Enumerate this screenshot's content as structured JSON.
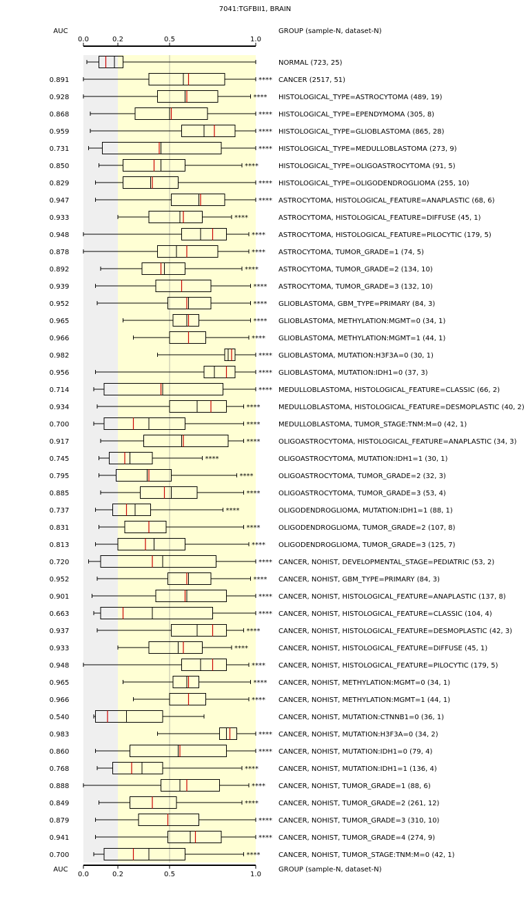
{
  "chart_data": {
    "type": "boxplot",
    "title": "7041:TGFBII1, BRAIN",
    "auc_label": "AUC",
    "group_label": "GROUP (sample-N, dataset-N)",
    "xlim": [
      0,
      1
    ],
    "ticks": [
      "0.0",
      "0.2",
      "0.5",
      "1.0"
    ],
    "tick_values": [
      0.0,
      0.2,
      0.5,
      1.0
    ],
    "shaded_regions": [
      {
        "from": 0.0,
        "to": 0.2,
        "color": "#efefef"
      },
      {
        "from": 0.2,
        "to": 1.0,
        "color": "#ffffd4"
      }
    ],
    "colors": {
      "significant": "#cc0000",
      "normal": "#000000",
      "median": "#cc0000"
    },
    "rows": [
      {
        "auc": "",
        "label": "NORMAL (723, 25)",
        "sig": "",
        "color": "black",
        "wl": 0.02,
        "q1": 0.09,
        "med": 0.18,
        "q3": 0.23,
        "wh": 1.0,
        "mean": 0.13
      },
      {
        "auc": "0.891",
        "label": "CANCER (2517, 51)",
        "sig": "****",
        "color": "red",
        "wl": 0.0,
        "q1": 0.38,
        "med": 0.58,
        "q3": 0.82,
        "wh": 1.0,
        "mean": 0.61
      },
      {
        "auc": "0.928",
        "label": "HISTOLOGICAL_TYPE=ASTROCYTOMA (489, 19)",
        "sig": "****",
        "color": "red",
        "wl": 0.0,
        "q1": 0.43,
        "med": 0.59,
        "q3": 0.78,
        "wh": 0.97,
        "mean": 0.6
      },
      {
        "auc": "0.868",
        "label": "HISTOLOGICAL_TYPE=EPENDYMOMA (305, 8)",
        "sig": "****",
        "color": "red",
        "wl": 0.04,
        "q1": 0.3,
        "med": 0.5,
        "q3": 0.72,
        "wh": 1.0,
        "mean": 0.51
      },
      {
        "auc": "0.959",
        "label": "HISTOLOGICAL_TYPE=GLIOBLASTOMA (865, 28)",
        "sig": "****",
        "color": "red",
        "wl": 0.04,
        "q1": 0.57,
        "med": 0.7,
        "q3": 0.88,
        "wh": 1.0,
        "mean": 0.76
      },
      {
        "auc": "0.731",
        "label": "HISTOLOGICAL_TYPE=MEDULLOBLASTOMA (273, 9)",
        "sig": "****",
        "color": "red",
        "wl": 0.03,
        "q1": 0.11,
        "med": 0.45,
        "q3": 0.8,
        "wh": 1.0,
        "mean": 0.44
      },
      {
        "auc": "0.850",
        "label": "HISTOLOGICAL_TYPE=OLIGOASTROCYTOMA (91, 5)",
        "sig": "****",
        "color": "red",
        "wl": 0.09,
        "q1": 0.23,
        "med": 0.45,
        "q3": 0.59,
        "wh": 0.92,
        "mean": 0.41
      },
      {
        "auc": "0.829",
        "label": "HISTOLOGICAL_TYPE=OLIGODENDROGLIOMA (255, 10)",
        "sig": "****",
        "color": "red",
        "wl": 0.07,
        "q1": 0.23,
        "med": 0.39,
        "q3": 0.55,
        "wh": 1.0,
        "mean": 0.4
      },
      {
        "auc": "0.947",
        "label": "ASTROCYTOMA, HISTOLOGICAL_FEATURE=ANAPLASTIC (68, 6)",
        "sig": "****",
        "color": "red",
        "wl": 0.07,
        "q1": 0.51,
        "med": 0.67,
        "q3": 0.82,
        "wh": 1.0,
        "mean": 0.68
      },
      {
        "auc": "0.933",
        "label": "ASTROCYTOMA, HISTOLOGICAL_FEATURE=DIFFUSE (45, 1)",
        "sig": "****",
        "color": "red",
        "wl": 0.2,
        "q1": 0.38,
        "med": 0.56,
        "q3": 0.69,
        "wh": 0.86,
        "mean": 0.58
      },
      {
        "auc": "0.948",
        "label": "ASTROCYTOMA, HISTOLOGICAL_FEATURE=PILOCYTIC (179, 5)",
        "sig": "****",
        "color": "red",
        "wl": 0.0,
        "q1": 0.57,
        "med": 0.68,
        "q3": 0.83,
        "wh": 0.96,
        "mean": 0.75
      },
      {
        "auc": "0.878",
        "label": "ASTROCYTOMA, TUMOR_GRADE=1 (74, 5)",
        "sig": "****",
        "color": "red",
        "wl": 0.0,
        "q1": 0.43,
        "med": 0.54,
        "q3": 0.78,
        "wh": 0.96,
        "mean": 0.6
      },
      {
        "auc": "0.892",
        "label": "ASTROCYTOMA, TUMOR_GRADE=2 (134, 10)",
        "sig": "****",
        "color": "red",
        "wl": 0.1,
        "q1": 0.34,
        "med": 0.47,
        "q3": 0.59,
        "wh": 0.92,
        "mean": 0.45
      },
      {
        "auc": "0.939",
        "label": "ASTROCYTOMA, TUMOR_GRADE=3 (132, 10)",
        "sig": "****",
        "color": "red",
        "wl": 0.07,
        "q1": 0.42,
        "med": 0.57,
        "q3": 0.74,
        "wh": 0.97,
        "mean": 0.57
      },
      {
        "auc": "0.952",
        "label": "GLIOBLASTOMA, GBM_TYPE=PRIMARY (84, 3)",
        "sig": "****",
        "color": "red",
        "wl": 0.08,
        "q1": 0.49,
        "med": 0.61,
        "q3": 0.74,
        "wh": 0.97,
        "mean": 0.6
      },
      {
        "auc": "0.965",
        "label": "GLIOBLASTOMA, METHYLATION:MGMT=0 (34, 1)",
        "sig": "****",
        "color": "red",
        "wl": 0.23,
        "q1": 0.52,
        "med": 0.6,
        "q3": 0.67,
        "wh": 0.97,
        "mean": 0.61
      },
      {
        "auc": "0.966",
        "label": "GLIOBLASTOMA, METHYLATION:MGMT=1 (44, 1)",
        "sig": "****",
        "color": "red",
        "wl": 0.29,
        "q1": 0.5,
        "med": 0.61,
        "q3": 0.71,
        "wh": 0.96,
        "mean": 0.61
      },
      {
        "auc": "0.982",
        "label": "GLIOBLASTOMA, MUTATION:H3F3A=0 (30, 1)",
        "sig": "****",
        "color": "red",
        "wl": 0.43,
        "q1": 0.82,
        "med": 0.84,
        "q3": 0.88,
        "wh": 1.0,
        "mean": 0.86
      },
      {
        "auc": "0.956",
        "label": "GLIOBLASTOMA, MUTATION:IDH1=0 (37, 3)",
        "sig": "****",
        "color": "red",
        "wl": 0.07,
        "q1": 0.7,
        "med": 0.76,
        "q3": 0.88,
        "wh": 1.0,
        "mean": 0.83
      },
      {
        "auc": "0.714",
        "label": "MEDULLOBLASTOMA, HISTOLOGICAL_FEATURE=CLASSIC (66, 2)",
        "sig": "****",
        "color": "red",
        "wl": 0.06,
        "q1": 0.12,
        "med": 0.46,
        "q3": 0.81,
        "wh": 1.0,
        "mean": 0.45
      },
      {
        "auc": "0.934",
        "label": "MEDULLOBLASTOMA, HISTOLOGICAL_FEATURE=DESMOPLASTIC (40, 2)",
        "sig": "****",
        "color": "red",
        "wl": 0.08,
        "q1": 0.5,
        "med": 0.66,
        "q3": 0.83,
        "wh": 0.93,
        "mean": 0.74
      },
      {
        "auc": "0.700",
        "label": "MEDULLOBLASTOMA, TUMOR_STAGE:TNM:M=0 (42, 1)",
        "sig": "****",
        "color": "red",
        "wl": 0.06,
        "q1": 0.12,
        "med": 0.38,
        "q3": 0.59,
        "wh": 0.93,
        "mean": 0.29
      },
      {
        "auc": "0.917",
        "label": "OLIGOASTROCYTOMA, HISTOLOGICAL_FEATURE=ANAPLASTIC (34, 3)",
        "sig": "****",
        "color": "red",
        "wl": 0.1,
        "q1": 0.35,
        "med": 0.57,
        "q3": 0.84,
        "wh": 0.93,
        "mean": 0.58
      },
      {
        "auc": "0.745",
        "label": "OLIGOASTROCYTOMA, MUTATION:IDH1=1 (30, 1)",
        "sig": "****",
        "color": "red",
        "wl": 0.09,
        "q1": 0.15,
        "med": 0.27,
        "q3": 0.4,
        "wh": 0.69,
        "mean": 0.24
      },
      {
        "auc": "0.795",
        "label": "OLIGOASTROCYTOMA, TUMOR_GRADE=2 (32, 3)",
        "sig": "****",
        "color": "red",
        "wl": 0.09,
        "q1": 0.19,
        "med": 0.37,
        "q3": 0.51,
        "wh": 0.89,
        "mean": 0.38
      },
      {
        "auc": "0.885",
        "label": "OLIGOASTROCYTOMA, TUMOR_GRADE=3 (53, 4)",
        "sig": "****",
        "color": "red",
        "wl": 0.1,
        "q1": 0.33,
        "med": 0.51,
        "q3": 0.66,
        "wh": 0.93,
        "mean": 0.47
      },
      {
        "auc": "0.737",
        "label": "OLIGODENDROGLIOMA, MUTATION:IDH1=1 (88, 1)",
        "sig": "****",
        "color": "red",
        "wl": 0.07,
        "q1": 0.17,
        "med": 0.3,
        "q3": 0.39,
        "wh": 0.81,
        "mean": 0.25
      },
      {
        "auc": "0.831",
        "label": "OLIGODENDROGLIOMA, TUMOR_GRADE=2 (107, 8)",
        "sig": "****",
        "color": "red",
        "wl": 0.09,
        "q1": 0.24,
        "med": 0.38,
        "q3": 0.48,
        "wh": 0.93,
        "mean": 0.38
      },
      {
        "auc": "0.813",
        "label": "OLIGODENDROGLIOMA, TUMOR_GRADE=3 (125, 7)",
        "sig": "****",
        "color": "red",
        "wl": 0.07,
        "q1": 0.2,
        "med": 0.41,
        "q3": 0.59,
        "wh": 0.96,
        "mean": 0.36
      },
      {
        "auc": "0.720",
        "label": "CANCER, NOHIST, DEVELOPMENTAL_STAGE=PEDIATRIC (53, 2)",
        "sig": "****",
        "color": "red",
        "wl": 0.03,
        "q1": 0.1,
        "med": 0.46,
        "q3": 0.77,
        "wh": 1.0,
        "mean": 0.4
      },
      {
        "auc": "0.952",
        "label": "CANCER, NOHIST, GBM_TYPE=PRIMARY (84, 3)",
        "sig": "****",
        "color": "red",
        "wl": 0.08,
        "q1": 0.49,
        "med": 0.61,
        "q3": 0.74,
        "wh": 0.97,
        "mean": 0.6
      },
      {
        "auc": "0.901",
        "label": "CANCER, NOHIST, HISTOLOGICAL_FEATURE=ANAPLASTIC (137, 8)",
        "sig": "****",
        "color": "red",
        "wl": 0.05,
        "q1": 0.42,
        "med": 0.6,
        "q3": 0.83,
        "wh": 1.0,
        "mean": 0.59
      },
      {
        "auc": "0.663",
        "label": "CANCER, NOHIST, HISTOLOGICAL_FEATURE=CLASSIC (104, 4)",
        "sig": "****",
        "color": "red",
        "wl": 0.06,
        "q1": 0.1,
        "med": 0.4,
        "q3": 0.75,
        "wh": 1.0,
        "mean": 0.23
      },
      {
        "auc": "0.937",
        "label": "CANCER, NOHIST, HISTOLOGICAL_FEATURE=DESMOPLASTIC (42, 3)",
        "sig": "****",
        "color": "red",
        "wl": 0.08,
        "q1": 0.51,
        "med": 0.66,
        "q3": 0.83,
        "wh": 0.93,
        "mean": 0.75
      },
      {
        "auc": "0.933",
        "label": "CANCER, NOHIST, HISTOLOGICAL_FEATURE=DIFFUSE (45, 1)",
        "sig": "****",
        "color": "red",
        "wl": 0.2,
        "q1": 0.38,
        "med": 0.55,
        "q3": 0.69,
        "wh": 0.86,
        "mean": 0.58
      },
      {
        "auc": "0.948",
        "label": "CANCER, NOHIST, HISTOLOGICAL_FEATURE=PILOCYTIC (179, 5)",
        "sig": "****",
        "color": "red",
        "wl": 0.0,
        "q1": 0.57,
        "med": 0.68,
        "q3": 0.83,
        "wh": 0.96,
        "mean": 0.75
      },
      {
        "auc": "0.965",
        "label": "CANCER, NOHIST, METHYLATION:MGMT=0 (34, 1)",
        "sig": "****",
        "color": "red",
        "wl": 0.23,
        "q1": 0.52,
        "med": 0.6,
        "q3": 0.67,
        "wh": 0.97,
        "mean": 0.61
      },
      {
        "auc": "0.966",
        "label": "CANCER, NOHIST, METHYLATION:MGMT=1 (44, 1)",
        "sig": "****",
        "color": "red",
        "wl": 0.29,
        "q1": 0.5,
        "med": 0.61,
        "q3": 0.71,
        "wh": 0.96,
        "mean": 0.61
      },
      {
        "auc": "0.540",
        "label": "CANCER, NOHIST, MUTATION:CTNNB1=0 (36, 1)",
        "sig": "",
        "color": "black",
        "wl": 0.06,
        "q1": 0.07,
        "med": 0.25,
        "q3": 0.46,
        "wh": 0.7,
        "mean": 0.14
      },
      {
        "auc": "0.983",
        "label": "CANCER, NOHIST, MUTATION:H3F3A=0 (34, 2)",
        "sig": "****",
        "color": "red",
        "wl": 0.43,
        "q1": 0.79,
        "med": 0.83,
        "q3": 0.89,
        "wh": 1.0,
        "mean": 0.85
      },
      {
        "auc": "0.860",
        "label": "CANCER, NOHIST, MUTATION:IDH1=0 (79, 4)",
        "sig": "****",
        "color": "red",
        "wl": 0.07,
        "q1": 0.27,
        "med": 0.55,
        "q3": 0.83,
        "wh": 1.0,
        "mean": 0.56
      },
      {
        "auc": "0.768",
        "label": "CANCER, NOHIST, MUTATION:IDH1=1 (136, 4)",
        "sig": "****",
        "color": "red",
        "wl": 0.08,
        "q1": 0.17,
        "med": 0.34,
        "q3": 0.46,
        "wh": 0.92,
        "mean": 0.28
      },
      {
        "auc": "0.888",
        "label": "CANCER, NOHIST, TUMOR_GRADE=1 (88, 6)",
        "sig": "****",
        "color": "red",
        "wl": 0.0,
        "q1": 0.45,
        "med": 0.56,
        "q3": 0.79,
        "wh": 0.96,
        "mean": 0.6
      },
      {
        "auc": "0.849",
        "label": "CANCER, NOHIST, TUMOR_GRADE=2 (261, 12)",
        "sig": "****",
        "color": "red",
        "wl": 0.09,
        "q1": 0.27,
        "med": 0.4,
        "q3": 0.54,
        "wh": 0.92,
        "mean": 0.4
      },
      {
        "auc": "0.879",
        "label": "CANCER, NOHIST, TUMOR_GRADE=3 (310, 10)",
        "sig": "****",
        "color": "red",
        "wl": 0.07,
        "q1": 0.32,
        "med": 0.49,
        "q3": 0.67,
        "wh": 1.0,
        "mean": 0.49
      },
      {
        "auc": "0.941",
        "label": "CANCER, NOHIST, TUMOR_GRADE=4 (274, 9)",
        "sig": "****",
        "color": "red",
        "wl": 0.07,
        "q1": 0.49,
        "med": 0.62,
        "q3": 0.8,
        "wh": 1.0,
        "mean": 0.65
      },
      {
        "auc": "0.700",
        "label": "CANCER, NOHIST, TUMOR_STAGE:TNM:M=0 (42, 1)",
        "sig": "****",
        "color": "red",
        "wl": 0.06,
        "q1": 0.12,
        "med": 0.38,
        "q3": 0.59,
        "wh": 0.93,
        "mean": 0.29
      }
    ]
  }
}
